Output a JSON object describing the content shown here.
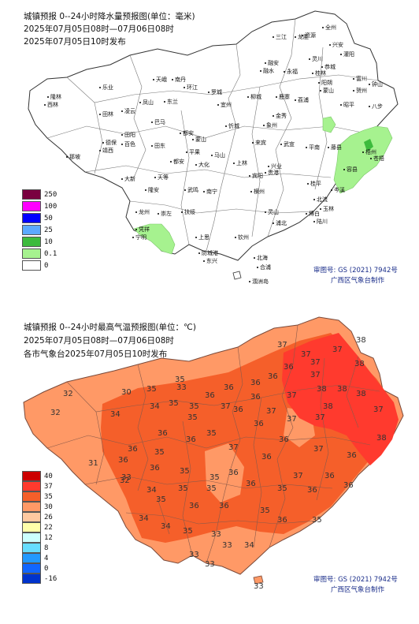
{
  "precip_map": {
    "title_line1": "城镇预报 0--24小时降水量预报图(单位：毫米)",
    "title_line2": "2025年07月05日08时—07月06日08时",
    "title_line3": "2025年07月05日10时发布",
    "legend": [
      {
        "label": "250",
        "color": "#7a0040"
      },
      {
        "label": "100",
        "color": "#ff00ff"
      },
      {
        "label": "50",
        "color": "#0000ff"
      },
      {
        "label": "25",
        "color": "#5ca9ff"
      },
      {
        "label": "10",
        "color": "#3dbb3d"
      },
      {
        "label": "0.1",
        "color": "#a6f28f"
      },
      {
        "label": "0",
        "color": "#ffffff"
      }
    ],
    "credit_line1": "审图号: GS (2021) 7942号",
    "credit_line2": "广西区气象台制作",
    "cities": [
      "全州",
      "资源",
      "兴安",
      "灌阳",
      "三江",
      "龙胜",
      "恭城",
      "灵川",
      "融水",
      "融安",
      "永福",
      "桂林",
      "阳朔",
      "隆林",
      "西林",
      "乐业",
      "天峨",
      "南丹",
      "环江",
      "罗城",
      "凤山",
      "东兰",
      "宜州",
      "柳城",
      "鹿寨",
      "荔浦",
      "蒙山",
      "昭平",
      "贺州",
      "钟山",
      "富川",
      "八步",
      "田林",
      "凌云",
      "巴马",
      "都安",
      "忻城",
      "金秀",
      "象州",
      "来宾",
      "武宣",
      "平南",
      "藤县",
      "梧州",
      "苍梧",
      "那坡",
      "靖西",
      "德保",
      "田阳",
      "百色",
      "田东",
      "平果",
      "马山",
      "上林",
      "宾阳",
      "贵港",
      "桂平",
      "容县",
      "岑溪",
      "北流",
      "玉林",
      "博白",
      "陆川",
      "大新",
      "天等",
      "隆安",
      "武鸣",
      "南宁",
      "横州",
      "灵山",
      "浦北",
      "凭祥",
      "宁明",
      "龙州",
      "崇左",
      "扶绥",
      "钦州",
      "防城港",
      "东兴",
      "上思",
      "北海",
      "合浦",
      "涠洲岛",
      "蒙山",
      "大化",
      "都安",
      "兴业"
    ],
    "colors": {
      "land": "#ffffff",
      "border": "#3a3a3a",
      "light_green": "#a6f28f"
    }
  },
  "temp_map": {
    "title_line1": "城镇预报 0--24小时最高气温预报图(单位：℃)",
    "title_line2": "2025年07月05日08时—07月06日08时",
    "title_line3": "各市气象台2025年07月05日10时发布",
    "legend": [
      {
        "label": "40",
        "color": "#cc0000"
      },
      {
        "label": "37",
        "color": "#ff3a2e"
      },
      {
        "label": "35",
        "color": "#f55f2a"
      },
      {
        "label": "30",
        "color": "#ff9966"
      },
      {
        "label": "26",
        "color": "#ffc9a0"
      },
      {
        "label": "22",
        "color": "#ffffaa"
      },
      {
        "label": "12",
        "color": "#ccffff"
      },
      {
        "label": "8",
        "color": "#66ddff"
      },
      {
        "label": "4",
        "color": "#2299ff"
      },
      {
        "label": "0",
        "color": "#1166ff"
      },
      {
        "label": "-16",
        "color": "#0033cc"
      }
    ],
    "credit_line1": "审图号: GS (2021) 7942号",
    "credit_line2": "广西区气象台制作",
    "values": [
      "37",
      "38",
      "37",
      "37",
      "37",
      "38",
      "36",
      "36",
      "36",
      "37",
      "37",
      "38",
      "38",
      "38",
      "38",
      "37",
      "35",
      "33",
      "36",
      "36",
      "32",
      "30",
      "35",
      "35",
      "35",
      "36",
      "37",
      "36",
      "37",
      "37",
      "32",
      "34",
      "34",
      "35",
      "37",
      "36",
      "36",
      "36",
      "35",
      "38",
      "36",
      "37",
      "36",
      "35",
      "37",
      "36",
      "36",
      "31",
      "36",
      "33",
      "36",
      "35",
      "35",
      "36",
      "37",
      "36",
      "32",
      "34",
      "35",
      "35",
      "36",
      "35",
      "36",
      "36",
      "35",
      "36",
      "36",
      "35",
      "36",
      "35",
      "34",
      "34",
      "35",
      "33",
      "34",
      "33",
      "33",
      "33",
      "33"
    ],
    "colors": {
      "band35": "#f55f2a",
      "band37": "#ff3a2e",
      "band30": "#ff9966",
      "border": "#7a4a3a"
    }
  }
}
